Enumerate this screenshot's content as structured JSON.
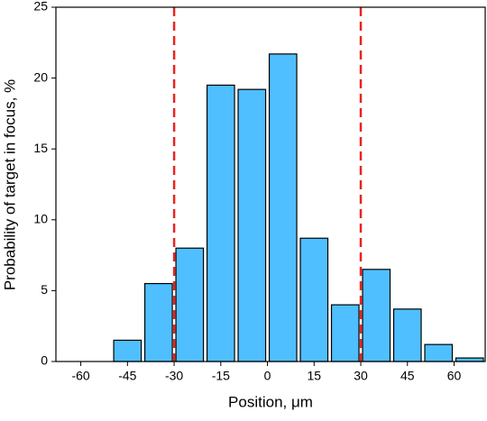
{
  "chart_data": {
    "type": "histogram",
    "xlabel": "Position, μm",
    "ylabel": "Probability of target in focus, %",
    "bins": [
      -50,
      -40,
      -30,
      -20,
      -10,
      0,
      10,
      20,
      30,
      40,
      50,
      60,
      70
    ],
    "values": [
      1.5,
      5.5,
      8.0,
      19.5,
      19.2,
      21.7,
      8.7,
      4.0,
      6.5,
      3.7,
      1.2,
      0.25
    ],
    "color": "#4fbfff",
    "xlim": [
      -68,
      70
    ],
    "xticks": [
      -60,
      -45,
      -30,
      -15,
      0,
      15,
      30,
      45,
      60
    ],
    "ylim": [
      0,
      25
    ],
    "yticks": [
      0,
      5,
      10,
      15,
      20,
      25
    ],
    "vlines": [
      -30,
      30
    ],
    "vline_color": "#e8241f"
  }
}
